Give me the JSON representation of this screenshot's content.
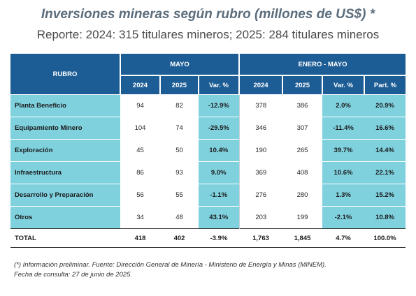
{
  "title": "Inversiones mineras según rubro (millones de US$) *",
  "subtitle": "Reporte: 2024: 315 titulares mineros; 2025: 284 titulares mineros",
  "table": {
    "header": {
      "rubro": "RUBRO",
      "group_mayo": "MAYO",
      "group_ene_may": "ENERO - MAYO",
      "cols": [
        "2024",
        "2025",
        "Var. %",
        "2024",
        "2025",
        "Var. %",
        "Part. %"
      ]
    },
    "rows": [
      {
        "label": "Planta Beneficio",
        "values": [
          "94",
          "82",
          "-12.9%",
          "378",
          "386",
          "2.0%",
          "20.9%"
        ]
      },
      {
        "label": "Equipamiento Minero",
        "values": [
          "104",
          "74",
          "-29.5%",
          "346",
          "307",
          "-11.4%",
          "16.6%"
        ]
      },
      {
        "label": "Exploración",
        "values": [
          "45",
          "50",
          "10.4%",
          "190",
          "265",
          "39.7%",
          "14.4%"
        ]
      },
      {
        "label": "Infraestructura",
        "values": [
          "86",
          "93",
          "9.0%",
          "369",
          "408",
          "10.6%",
          "22.1%"
        ]
      },
      {
        "label": "Desarrollo y Preparación",
        "values": [
          "56",
          "55",
          "-1.1%",
          "276",
          "280",
          "1.3%",
          "15.2%"
        ]
      },
      {
        "label": "Otros",
        "values": [
          "34",
          "48",
          "43.1%",
          "203",
          "199",
          "-2.1%",
          "10.8%"
        ]
      }
    ],
    "total": {
      "label": "TOTAL",
      "values": [
        "418",
        "402",
        "-3.9%",
        "1,763",
        "1,845",
        "4.7%",
        "100.0%"
      ]
    }
  },
  "footnote": {
    "line1": "(*) Información preliminar. Fuente: Dirección General de Minería - Ministerio de Energía y Minas (MINEM).",
    "line2": "Fecha de consulta: 27 de junio de 2025."
  },
  "colors": {
    "header_bg": "#1d5d95",
    "highlight_bg": "#7fd1de",
    "title_color": "#5b6d7c"
  }
}
